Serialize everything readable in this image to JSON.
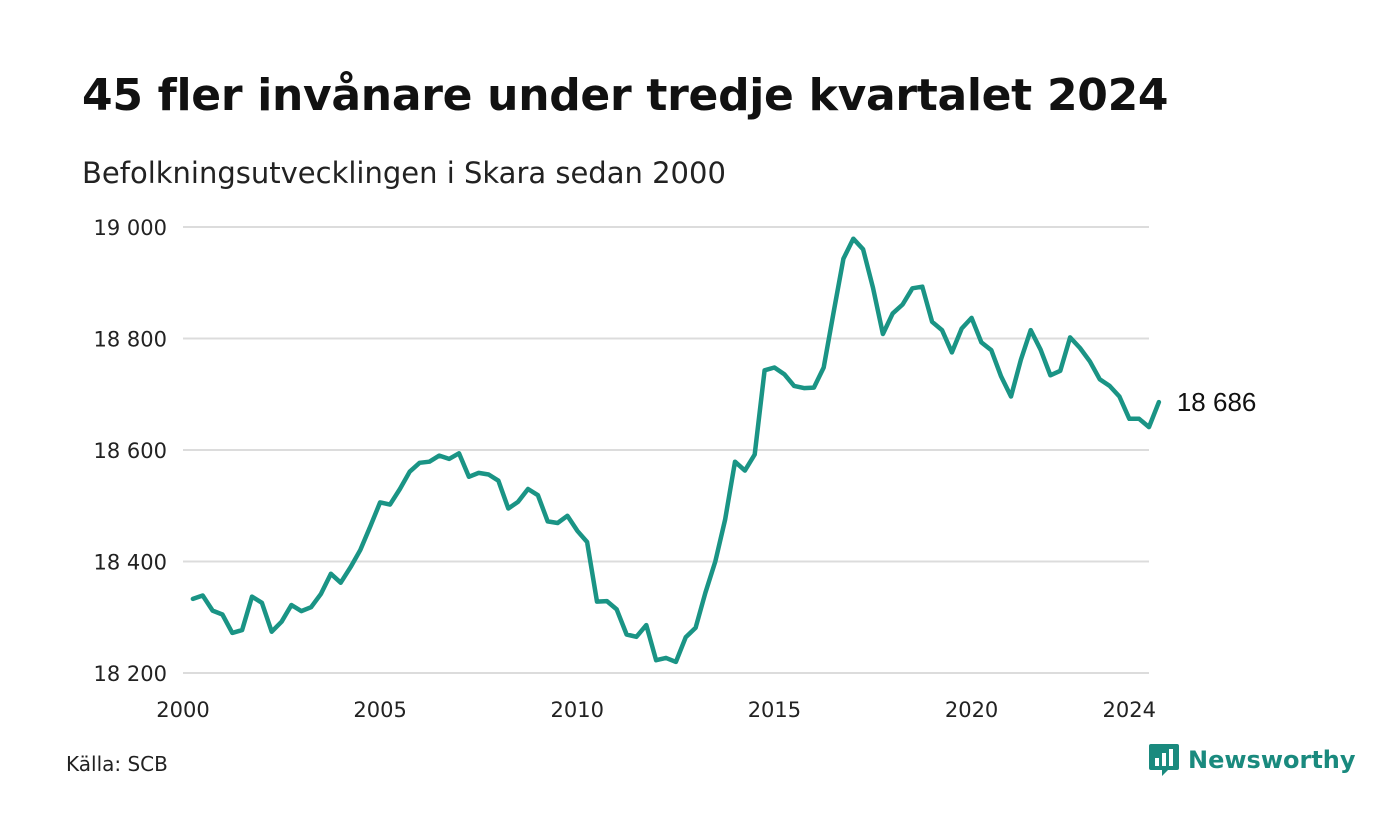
{
  "title": "45 fler invånare under tredje kvartalet 2024",
  "subtitle": "Befolkningsutvecklingen i Skara sedan 2000",
  "source": "Källa: SCB",
  "brand": "Newsworthy",
  "colors": {
    "line": "#1a9485",
    "grid": "#dcdcdc",
    "brand": "#1a8a7e"
  },
  "chart_data": {
    "type": "line",
    "title": "45 fler invånare under tredje kvartalet 2024",
    "subtitle": "Befolkningsutvecklingen i Skara sedan 2000",
    "x_ticks": [
      2000,
      2005,
      2010,
      2015,
      2020,
      2024
    ],
    "x_tick_labels": [
      "2000",
      "2005",
      "2010",
      "2015",
      "2020",
      "2024"
    ],
    "y_ticks": [
      18200,
      18400,
      18600,
      18800,
      19000
    ],
    "y_tick_labels": [
      "18 200",
      "18 400",
      "18 600",
      "18 800",
      "19 000"
    ],
    "xlim": [
      2000,
      2024.5
    ],
    "ylim": [
      18200,
      19000
    ],
    "grid": "horizontal",
    "legend": "none",
    "end_label": "18 686",
    "series": [
      {
        "x_start": 2000.25,
        "x_step": 0.25,
        "values": [
          18333,
          18339,
          18312,
          18305,
          18272,
          18277,
          18337,
          18326,
          18274,
          18292,
          18322,
          18311,
          18318,
          18342,
          18378,
          18362,
          18390,
          18421,
          18463,
          18506,
          18502,
          18530,
          18561,
          18577,
          18579,
          18590,
          18584,
          18594,
          18552,
          18559,
          18556,
          18545,
          18495,
          18507,
          18530,
          18519,
          18472,
          18469,
          18482,
          18455,
          18435,
          18328,
          18329,
          18314,
          18269,
          18265,
          18286,
          18223,
          18227,
          18220,
          18264,
          18281,
          18344,
          18400,
          18475,
          18579,
          18563,
          18592,
          18743,
          18748,
          18736,
          18715,
          18711,
          18712,
          18748,
          18847,
          18943,
          18979,
          18960,
          18891,
          18808,
          18845,
          18861,
          18890,
          18893,
          18830,
          18815,
          18775,
          18818,
          18837,
          18793,
          18779,
          18732,
          18696,
          18762,
          18815,
          18780,
          18734,
          18742,
          18802,
          18783,
          18759,
          18727,
          18715,
          18696,
          18656,
          18656,
          18641,
          18686
        ]
      }
    ]
  }
}
